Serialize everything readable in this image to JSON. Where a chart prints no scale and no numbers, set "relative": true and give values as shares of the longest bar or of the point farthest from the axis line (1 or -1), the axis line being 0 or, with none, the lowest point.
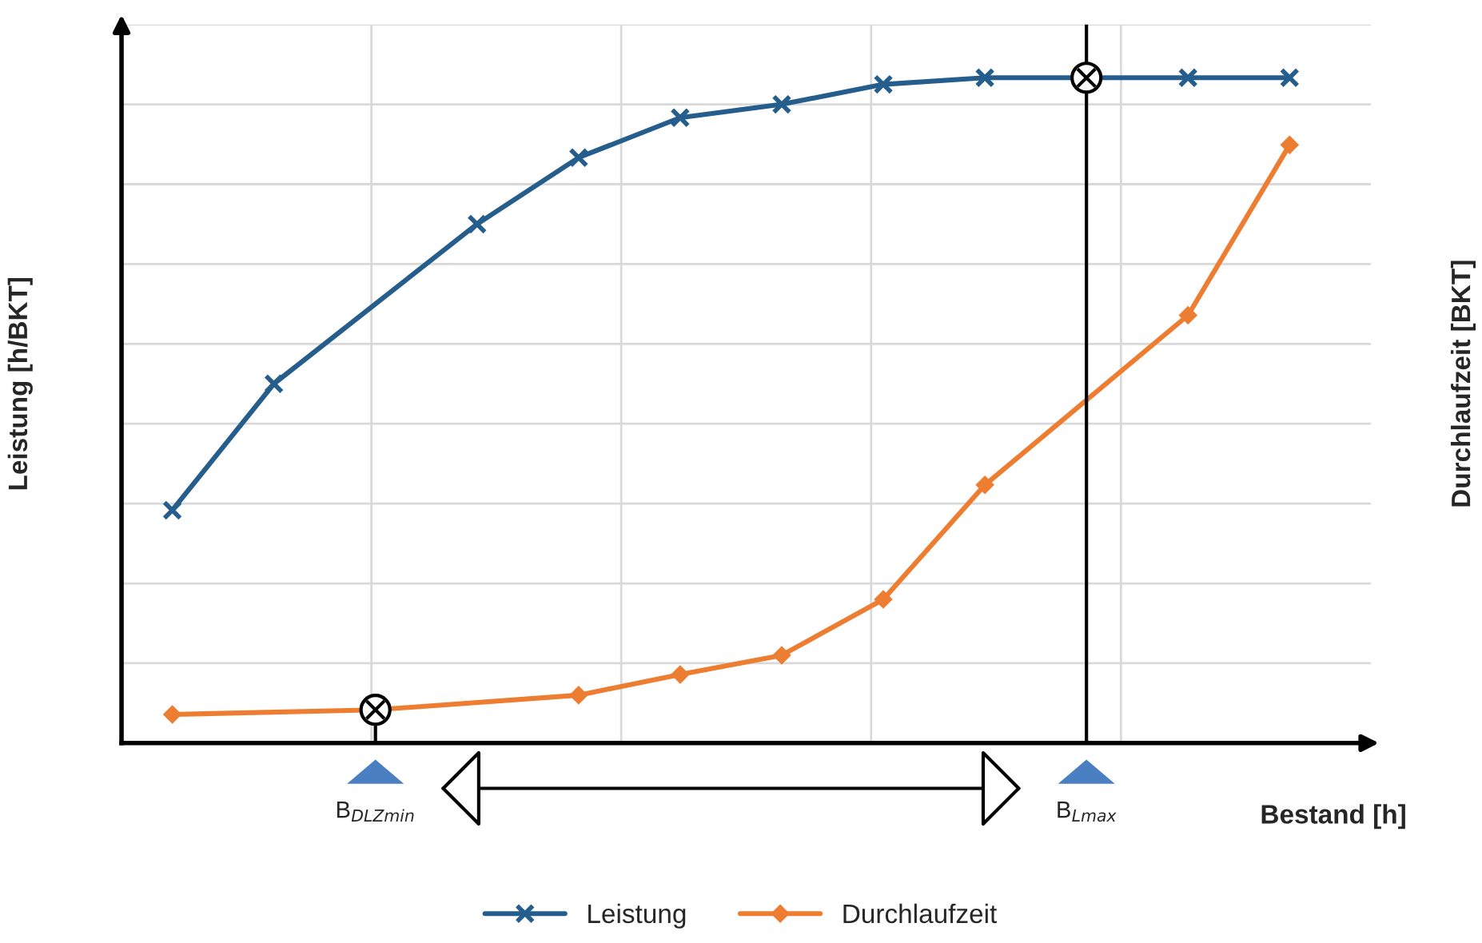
{
  "chart_data": {
    "type": "line",
    "relative": true,
    "xlabel": "Bestand [h]",
    "ylabel": "Leistung [h/BKT]",
    "y2label": "Durchlaufzeit [BKT]",
    "categories": [
      null,
      null,
      "B$_{DLZmin}$",
      null,
      null,
      null,
      null,
      null,
      null,
      "B$_{Lmax}$",
      null,
      null
    ],
    "grid": true,
    "legend": "bottom",
    "line_style": "solid",
    "series": [
      {
        "name": "Leistung",
        "color": "#255e8c",
        "marker": "cross",
        "values": [
          0.35,
          0.54,
          null,
          0.78,
          0.88,
          0.94,
          0.96,
          0.99,
          1,
          1,
          1,
          1
        ]
      },
      {
        "name": "Durchlaufzeit",
        "color": "#ed7d31",
        "marker": "diamond",
        "values": [
          0.043,
          null,
          0.05,
          null,
          0.072,
          0.103,
          0.132,
          0.216,
          0.388,
          null,
          0.643,
          0.899
        ]
      }
    ],
    "ref_lines": [
      {
        "axis": "x",
        "value": "B$_{Lmax}$",
        "color": "#000000"
      }
    ]
  }
}
